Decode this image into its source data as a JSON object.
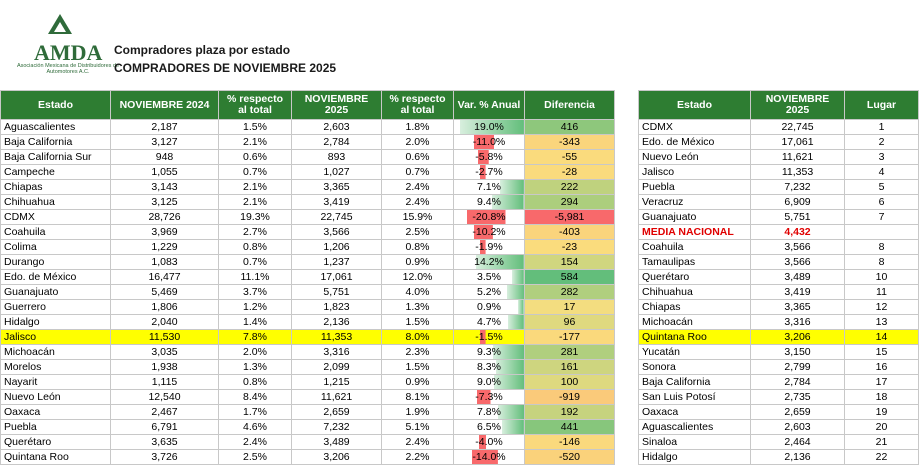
{
  "header": {
    "title": "Compradores plaza por estado",
    "subtitle": "COMPRADORES DE NOVIEMBRE 2025",
    "logo_text": "AMDA",
    "logo_caption": "Asociación Mexicana de Distribuidores de Automotores A.C."
  },
  "colors": {
    "header_green": "#2e7d32",
    "highlight": "#ffff00",
    "negative": "#e00000"
  },
  "main_table": {
    "columns": [
      "Estado",
      "NOVIEMBRE 2024",
      "% respecto al total",
      "NOVIEMBRE 2025",
      "% respecto al total",
      "Var. % Anual",
      "Diferencia"
    ],
    "rows": [
      {
        "estado": "Aguascalientes",
        "nov2024": "2,187",
        "pct2024": "1.5%",
        "nov2025": "2,603",
        "pct2025": "1.8%",
        "var": "19.0%",
        "dif": "416"
      },
      {
        "estado": "Baja California",
        "nov2024": "3,127",
        "pct2024": "2.1%",
        "nov2025": "2,784",
        "pct2025": "2.0%",
        "var": "-11.0%",
        "dif": "-343"
      },
      {
        "estado": "Baja California Sur",
        "nov2024": "948",
        "pct2024": "0.6%",
        "nov2025": "893",
        "pct2025": "0.6%",
        "var": "-5.8%",
        "dif": "-55"
      },
      {
        "estado": "Campeche",
        "nov2024": "1,055",
        "pct2024": "0.7%",
        "nov2025": "1,027",
        "pct2025": "0.7%",
        "var": "-2.7%",
        "dif": "-28"
      },
      {
        "estado": "Chiapas",
        "nov2024": "3,143",
        "pct2024": "2.1%",
        "nov2025": "3,365",
        "pct2025": "2.4%",
        "var": "7.1%",
        "dif": "222"
      },
      {
        "estado": "Chihuahua",
        "nov2024": "3,125",
        "pct2024": "2.1%",
        "nov2025": "3,419",
        "pct2025": "2.4%",
        "var": "9.4%",
        "dif": "294"
      },
      {
        "estado": "CDMX",
        "nov2024": "28,726",
        "pct2024": "19.3%",
        "nov2025": "22,745",
        "pct2025": "15.9%",
        "var": "-20.8%",
        "dif": "-5,981"
      },
      {
        "estado": "Coahuila",
        "nov2024": "3,969",
        "pct2024": "2.7%",
        "nov2025": "3,566",
        "pct2025": "2.5%",
        "var": "-10.2%",
        "dif": "-403"
      },
      {
        "estado": "Colima",
        "nov2024": "1,229",
        "pct2024": "0.8%",
        "nov2025": "1,206",
        "pct2025": "0.8%",
        "var": "-1.9%",
        "dif": "-23"
      },
      {
        "estado": "Durango",
        "nov2024": "1,083",
        "pct2024": "0.7%",
        "nov2025": "1,237",
        "pct2025": "0.9%",
        "var": "14.2%",
        "dif": "154"
      },
      {
        "estado": "Edo. de México",
        "nov2024": "16,477",
        "pct2024": "11.1%",
        "nov2025": "17,061",
        "pct2025": "12.0%",
        "var": "3.5%",
        "dif": "584"
      },
      {
        "estado": "Guanajuato",
        "nov2024": "5,469",
        "pct2024": "3.7%",
        "nov2025": "5,751",
        "pct2025": "4.0%",
        "var": "5.2%",
        "dif": "282"
      },
      {
        "estado": "Guerrero",
        "nov2024": "1,806",
        "pct2024": "1.2%",
        "nov2025": "1,823",
        "pct2025": "1.3%",
        "var": "0.9%",
        "dif": "17"
      },
      {
        "estado": "Hidalgo",
        "nov2024": "2,040",
        "pct2024": "1.4%",
        "nov2025": "2,136",
        "pct2025": "1.5%",
        "var": "4.7%",
        "dif": "96"
      },
      {
        "estado": "Jalisco",
        "nov2024": "11,530",
        "pct2024": "7.8%",
        "nov2025": "11,353",
        "pct2025": "8.0%",
        "var": "-1.5%",
        "dif": "-177"
      },
      {
        "estado": "Michoacán",
        "nov2024": "3,035",
        "pct2024": "2.0%",
        "nov2025": "3,316",
        "pct2025": "2.3%",
        "var": "9.3%",
        "dif": "281"
      },
      {
        "estado": "Morelos",
        "nov2024": "1,938",
        "pct2024": "1.3%",
        "nov2025": "2,099",
        "pct2025": "1.5%",
        "var": "8.3%",
        "dif": "161"
      },
      {
        "estado": "Nayarit",
        "nov2024": "1,115",
        "pct2024": "0.8%",
        "nov2025": "1,215",
        "pct2025": "0.9%",
        "var": "9.0%",
        "dif": "100"
      },
      {
        "estado": "Nuevo León",
        "nov2024": "12,540",
        "pct2024": "8.4%",
        "nov2025": "11,621",
        "pct2025": "8.1%",
        "var": "-7.3%",
        "dif": "-919"
      },
      {
        "estado": "Oaxaca",
        "nov2024": "2,467",
        "pct2024": "1.7%",
        "nov2025": "2,659",
        "pct2025": "1.9%",
        "var": "7.8%",
        "dif": "192"
      },
      {
        "estado": "Puebla",
        "nov2024": "6,791",
        "pct2024": "4.6%",
        "nov2025": "7,232",
        "pct2025": "5.1%",
        "var": "6.5%",
        "dif": "441"
      },
      {
        "estado": "Querétaro",
        "nov2024": "3,635",
        "pct2024": "2.4%",
        "nov2025": "3,489",
        "pct2025": "2.4%",
        "var": "-4.0%",
        "dif": "-146"
      },
      {
        "estado": "Quintana Roo",
        "nov2024": "3,726",
        "pct2024": "2.5%",
        "nov2025": "3,206",
        "pct2025": "2.2%",
        "var": "-14.0%",
        "dif": "-520"
      }
    ]
  },
  "ranking_table": {
    "columns": [
      "Estado",
      "NOVIEMBRE 2025",
      "Lugar"
    ],
    "media_label": "MEDIA NACIONAL",
    "media_value": "4,432",
    "rows": [
      {
        "estado": "CDMX",
        "valor": "22,745",
        "lugar": "1"
      },
      {
        "estado": "Edo. de México",
        "valor": "17,061",
        "lugar": "2"
      },
      {
        "estado": "Nuevo León",
        "valor": "11,621",
        "lugar": "3"
      },
      {
        "estado": "Jalisco",
        "valor": "11,353",
        "lugar": "4"
      },
      {
        "estado": "Puebla",
        "valor": "7,232",
        "lugar": "5"
      },
      {
        "estado": "Veracruz",
        "valor": "6,909",
        "lugar": "6"
      },
      {
        "estado": "Guanajuato",
        "valor": "5,751",
        "lugar": "7"
      },
      {
        "estado": "Coahuila",
        "valor": "3,566",
        "lugar": "8"
      },
      {
        "estado": "Tamaulipas",
        "valor": "3,566",
        "lugar": "8"
      },
      {
        "estado": "Querétaro",
        "valor": "3,489",
        "lugar": "10"
      },
      {
        "estado": "Chihuahua",
        "valor": "3,419",
        "lugar": "11"
      },
      {
        "estado": "Chiapas",
        "valor": "3,365",
        "lugar": "12"
      },
      {
        "estado": "Michoacán",
        "valor": "3,316",
        "lugar": "13"
      },
      {
        "estado": "Quintana Roo",
        "valor": "3,206",
        "lugar": "14"
      },
      {
        "estado": "Yucatán",
        "valor": "3,150",
        "lugar": "15"
      },
      {
        "estado": "Sonora",
        "valor": "2,799",
        "lugar": "16"
      },
      {
        "estado": "Baja California",
        "valor": "2,784",
        "lugar": "17"
      },
      {
        "estado": "San Luis Potosí",
        "valor": "2,735",
        "lugar": "18"
      },
      {
        "estado": "Oaxaca",
        "valor": "2,659",
        "lugar": "19"
      },
      {
        "estado": "Aguascalientes",
        "valor": "2,603",
        "lugar": "20"
      },
      {
        "estado": "Sinaloa",
        "valor": "2,464",
        "lugar": "21"
      },
      {
        "estado": "Hidalgo",
        "valor": "2,136",
        "lugar": "22"
      }
    ]
  },
  "highlight_estado": "Jalisco",
  "highlight_rank_estado": "Quintana Roo"
}
